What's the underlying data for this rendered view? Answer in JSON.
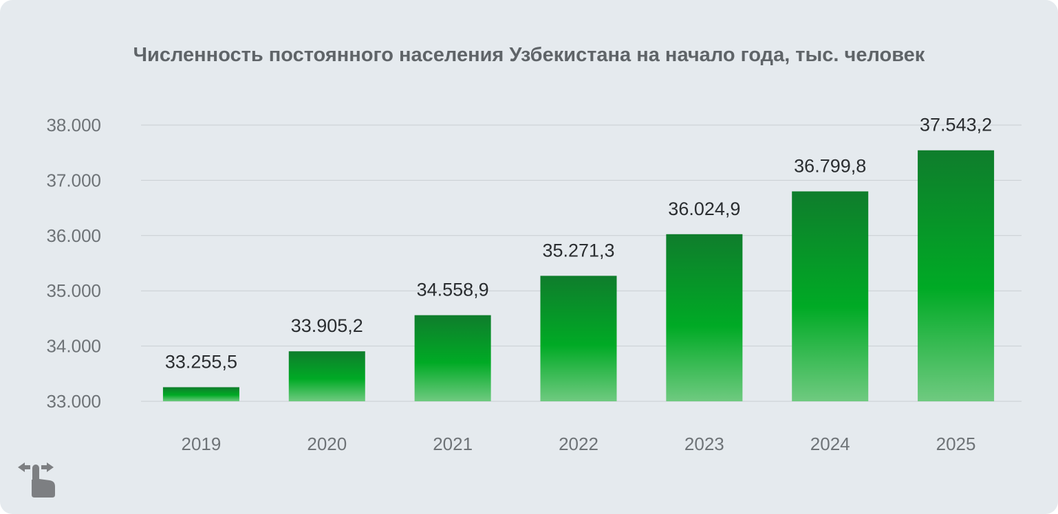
{
  "colors": {
    "background": "#e5eaee",
    "bar_top": "#0f7d2c",
    "bar_mid": "#00aa25",
    "bar_bottom": "#6fca80",
    "gridline": "#c9ced2"
  },
  "icons": {
    "swipe": "swipe-hand-icon"
  },
  "chart_data": {
    "type": "bar",
    "title": "Численность постоянного населения Узбекистана на начало года, тыс. человек",
    "xlabel": "",
    "ylabel": "",
    "categories": [
      "2019",
      "2020",
      "2021",
      "2022",
      "2023",
      "2024",
      "2025"
    ],
    "values": [
      33255.5,
      33905.2,
      34558.9,
      35271.3,
      36024.9,
      36799.8,
      37543.2
    ],
    "value_labels": [
      "33.255,5",
      "33.905,2",
      "34.558,9",
      "35.271,3",
      "36.024,9",
      "36.799,8",
      "37.543,2"
    ],
    "ylim": [
      33000,
      38000
    ],
    "yticks": [
      33000,
      34000,
      35000,
      36000,
      37000,
      38000
    ],
    "ytick_labels": [
      "33.000",
      "34.000",
      "35.000",
      "36.000",
      "37.000",
      "38.000"
    ],
    "grid": true,
    "legend": "none"
  }
}
